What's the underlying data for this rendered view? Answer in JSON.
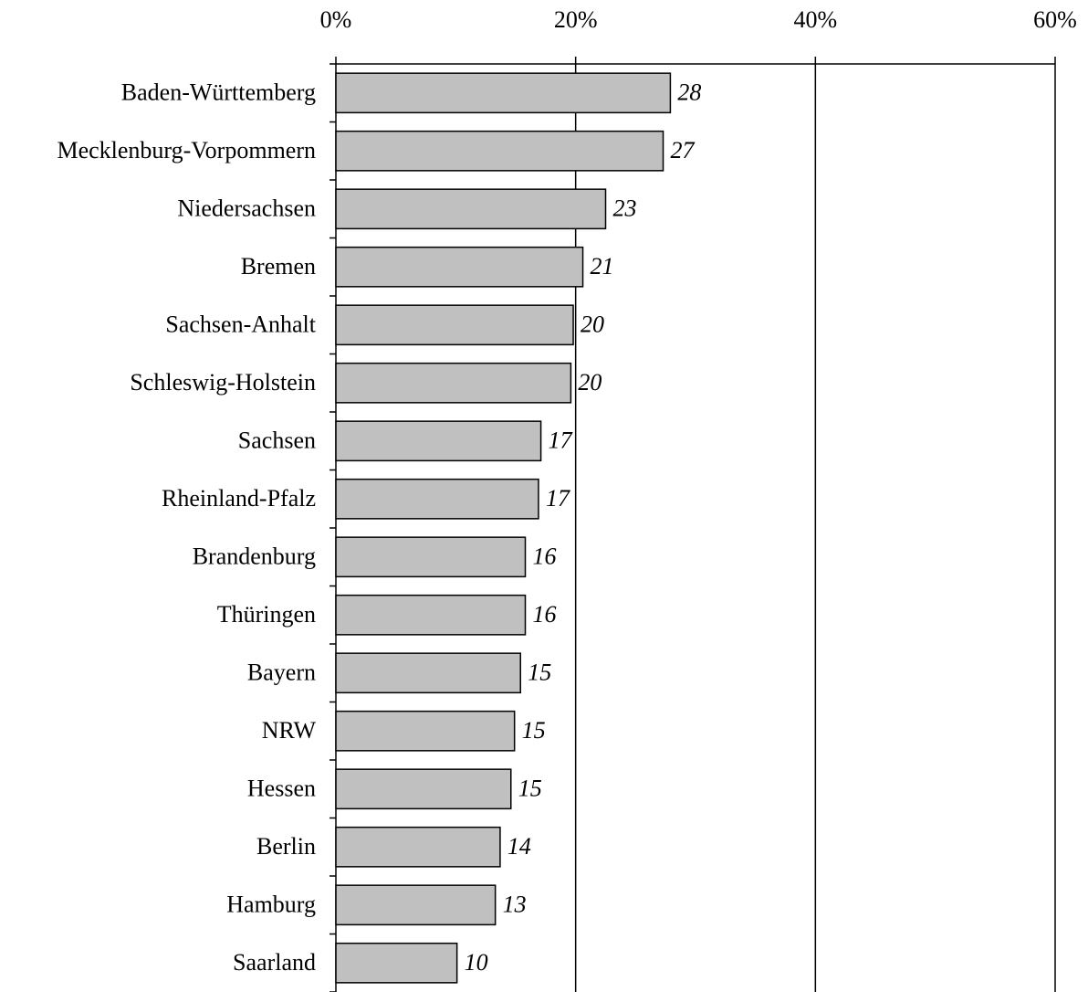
{
  "chart_data": {
    "type": "bar",
    "orientation": "horizontal",
    "categories": [
      "Baden-Württemberg",
      "Mecklenburg-Vorpommern",
      "Niedersachsen",
      "Bremen",
      "Sachsen-Anhalt",
      "Schleswig-Holstein",
      "Sachsen",
      "Rheinland-Pfalz",
      "Brandenburg",
      "Thüringen",
      "Bayern",
      "NRW",
      "Hessen",
      "Berlin",
      "Hamburg",
      "Saarland"
    ],
    "values": [
      27.9,
      27.3,
      22.5,
      20.6,
      19.8,
      19.6,
      17.1,
      16.9,
      15.8,
      15.8,
      15.4,
      14.9,
      14.6,
      13.7,
      13.3,
      10.1
    ],
    "value_labels": [
      "28",
      "27",
      "23",
      "21",
      "20",
      "20",
      "17",
      "17",
      "16",
      "16",
      "15",
      "15",
      "15",
      "14",
      "13",
      "10"
    ],
    "color": "#c0c0c0",
    "xlim": [
      0,
      60
    ],
    "xticks": [
      {
        "value": 0,
        "label": "0%"
      },
      {
        "value": 20,
        "label": "20%"
      },
      {
        "value": 40,
        "label": "40%"
      },
      {
        "value": 60,
        "label": "60%"
      }
    ],
    "grid": true
  }
}
